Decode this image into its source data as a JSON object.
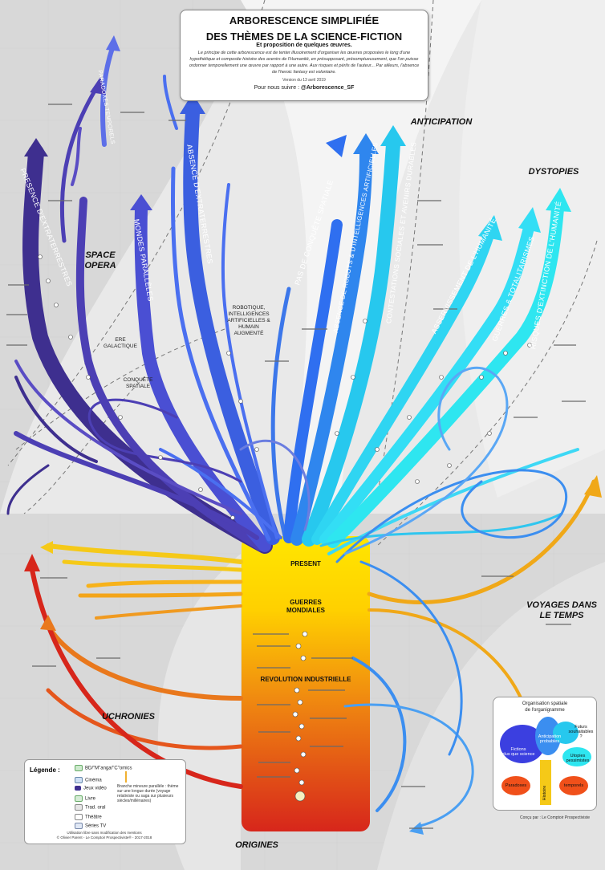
{
  "title": {
    "line1": "ARBORESCENCE SIMPLIFIÉE",
    "line2": "DES THÈMES DE LA SCIENCE-FICTION",
    "subtitle": "Et proposition de quelques œuvres.",
    "intro": "Le principe de cette arborescence est de tenter illusoirement d'organiser les œuvres proposées le long d'une hypothétique et composite histoire des avenirs de l'Humanité, en présupposant, présomptueusement, que l'on puisse ordonner temporellement une œuvre par rapport à une autre. Aux risques et périls de l'auteur... Par ailleurs, l'absence de l'heroic fantasy est volontaire.",
    "version": "Version du 13 avril 2019",
    "follow_prefix": "Pour nous suivre : ",
    "follow_handle": "@Arborescence_SF"
  },
  "regions": {
    "space_opera": "SPACE\nOPERA",
    "anticipation": "ANTICIPATION",
    "dystopies": "DYSTOPIES",
    "voyages": "VOYAGES DANS\nLE TEMPS",
    "uchronies": "UCHRONIES",
    "origines": "ORIGINES"
  },
  "sub_labels": {
    "ere_galactique": "ERE\nGALACTIQUE",
    "conquete_spatiale": "CONQUÊTE\nSPATIALE",
    "robotique": "ROBOTIQUE,\nINTELLIGENCES\nARTIFICIELLES &\nHUMAIN\nAUGMENTÉ"
  },
  "trunk": {
    "present": "PRESENT",
    "guerres": "GUERRES\nMONDIALES",
    "revolution": "REVOLUTION INDUSTRIELLE"
  },
  "branches": {
    "presence_extra": "PRESENCE D'EXTRATERRESTRES",
    "mondes_paralleles": "MONDES PARALLÈLES",
    "absence_extra": "ABSENCE D'EXTRATERRESTRES",
    "pas_conquete": "PAS DE CONQUÊTE SPATIALE",
    "absence_robots": "ABSENCE DE ROBOTS & D'INTELLIGENCES ARTIFICIELLES",
    "contestations": "CONTESTATIONS SOCIALES ET AVENIRS DURABLES",
    "asservissement": "ASSERVISSEMENT DE L'HUMANITÉ",
    "guerres_totalitarismes": "GUERRES & TOTALITARISMES",
    "risques_extinction": "RISQUES D'EXTINCTION DE L'HUMANITÉ",
    "paradoxes_top": "PARADOXES TEMPORELS"
  },
  "legend": {
    "title": "Légende :",
    "items": [
      "BD/\"M\"anga/\"C\"omics",
      "Cinéma",
      "Jeux vidéo",
      "Livre",
      "Trad. oral",
      "Théâtre",
      "Séries TV"
    ],
    "branch_note": "Branche mineure parallèle : thème sur une longue durée (voyage relativiste ou saga sur plusieurs siècles/millénaires)",
    "credit1": "Utilisation libre sans modification des mentions",
    "credit2": "© Olivier Parent - Le Comptoir Prospectiviste® - 2017-2018"
  },
  "org": {
    "title": "Organisation spatiale\nde l'organigramme",
    "futurs_souhaitables": "Futurs\nsouhaitables ?",
    "anticipation_probables": "Anticipation\nprobables",
    "fictions": "Fictions\nplus que science",
    "utopies": "Utopies\npessimistes",
    "paradoxes": "Paradoxes",
    "temporels": "temporels",
    "histoire": "Histoire"
  },
  "signature": "Conçu par : Le Comptoir Prospectiviste",
  "colors": {
    "violet_dark": "#3e2f8f",
    "violet": "#4c3fb4",
    "blue": "#3b5fe0",
    "blue_mid": "#2f86ee",
    "cyan": "#27c8ee",
    "aqua": "#2ee6f0",
    "orange": "#f09a20",
    "yellow": "#f4c419",
    "red": "#d7261b",
    "trunk_top": "#ffe100",
    "trunk_bottom": "#e0261b"
  }
}
